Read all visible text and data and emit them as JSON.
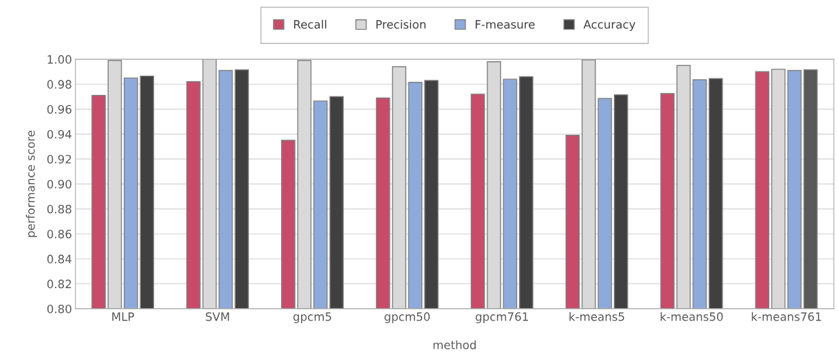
{
  "chart_data": {
    "type": "bar",
    "xlabel": "method",
    "ylabel": "performance score",
    "categories": [
      "MLP",
      "SVM",
      "gpcm5",
      "gpcm50",
      "gpcm761",
      "k-means5",
      "k-means50",
      "k-means761"
    ],
    "series": [
      {
        "name": "Recall",
        "color": "#c84c6a",
        "values": [
          0.971,
          0.982,
          0.935,
          0.969,
          0.972,
          0.939,
          0.9725,
          0.99
        ]
      },
      {
        "name": "Precision",
        "color": "#d9d9d9",
        "values": [
          0.999,
          1.0,
          0.999,
          0.994,
          0.998,
          0.9995,
          0.995,
          0.992
        ]
      },
      {
        "name": "F-measure",
        "color": "#8eaadb",
        "values": [
          0.985,
          0.991,
          0.9665,
          0.9815,
          0.984,
          0.9685,
          0.9835,
          0.991
        ]
      },
      {
        "name": "Accuracy",
        "color": "#404040",
        "colors": [
          "#404040",
          "#404040",
          "#404040",
          "#404040",
          "#404040",
          "#404040",
          "#404040",
          "#595959"
        ],
        "values": [
          0.9865,
          0.9915,
          0.97,
          0.983,
          0.986,
          0.9715,
          0.9845,
          0.9915
        ]
      }
    ],
    "ylim": [
      0.8,
      1.0
    ],
    "yticks": [
      {
        "value": 0.8,
        "label": "0.80"
      },
      {
        "value": 0.82,
        "label": "0.82"
      },
      {
        "value": 0.84,
        "label": "0.84"
      },
      {
        "value": 0.86,
        "label": "0.86"
      },
      {
        "value": 0.88,
        "label": "0.88"
      },
      {
        "value": 0.9,
        "label": "0.90"
      },
      {
        "value": 0.92,
        "label": "0.92"
      },
      {
        "value": 0.94,
        "label": "0.94"
      },
      {
        "value": 0.96,
        "label": "0.96"
      },
      {
        "value": 0.98,
        "label": "0.98"
      },
      {
        "value": 1.0,
        "label": "1.00"
      }
    ],
    "grid": "y",
    "legend": "top"
  }
}
